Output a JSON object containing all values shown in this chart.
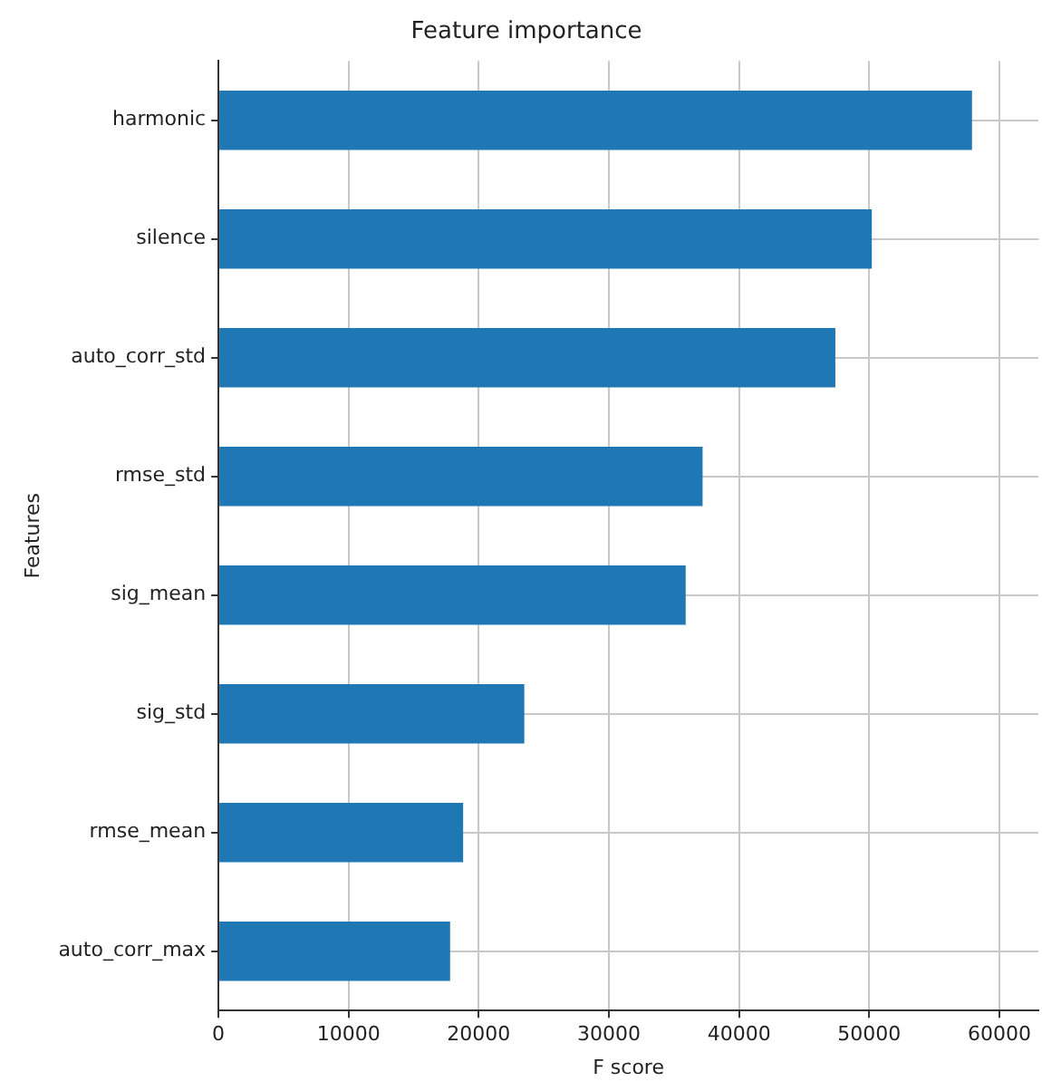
{
  "chart_data": {
    "type": "bar",
    "orientation": "horizontal",
    "title": "Feature importance",
    "xlabel": "F score",
    "ylabel": "Features",
    "categories": [
      "harmonic",
      "silence",
      "auto_corr_std",
      "rmse_std",
      "sig_mean",
      "sig_std",
      "rmse_mean",
      "auto_corr_max"
    ],
    "values": [
      57900,
      50200,
      47400,
      37200,
      35900,
      23500,
      18800,
      17800
    ],
    "color": "#1f77b4",
    "xlim": [
      0,
      63000
    ],
    "xticks": [
      0,
      10000,
      20000,
      30000,
      40000,
      50000,
      60000
    ],
    "grid": true,
    "legend": false
  }
}
